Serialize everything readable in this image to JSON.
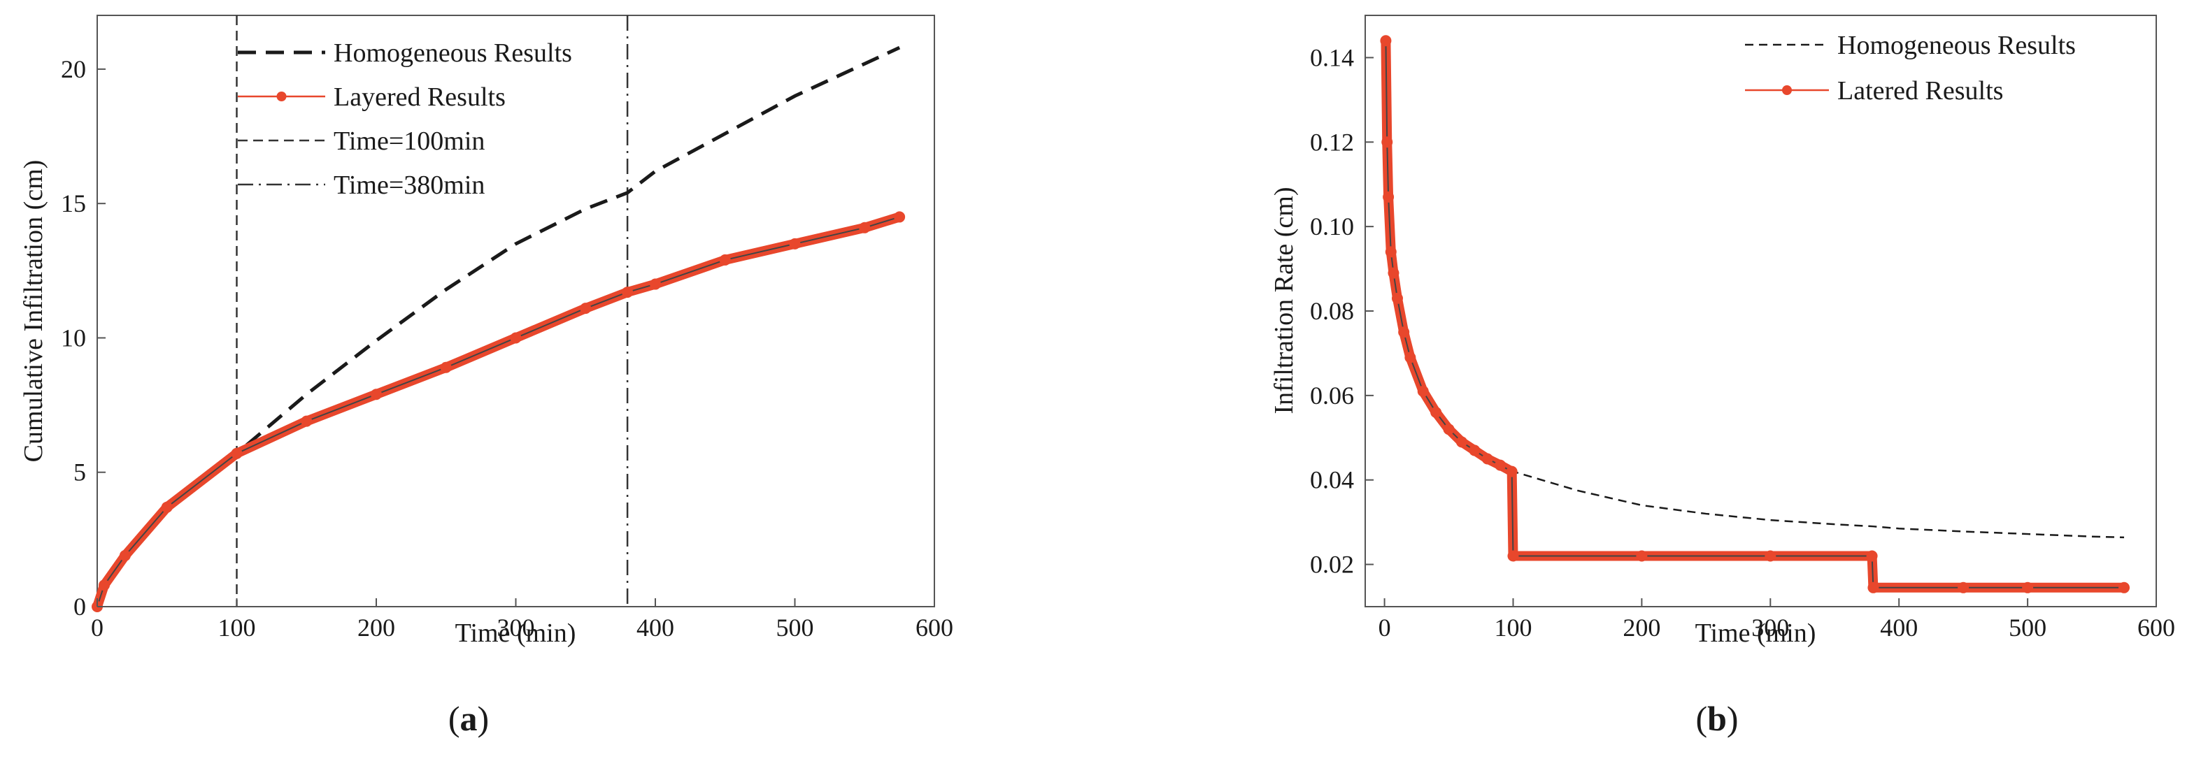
{
  "colors": {
    "homogeneous": "#1a1a1a",
    "layered": "#e8472c",
    "axis": "#555555"
  },
  "chart_data": [
    {
      "id": "a",
      "type": "line",
      "caption": "(a)",
      "caption_letter": "a",
      "xlabel": "Time (min)",
      "ylabel": "Cumulative Infiltration (cm)",
      "xlim": [
        0,
        600
      ],
      "ylim": [
        0,
        22
      ],
      "xticks": [
        0,
        100,
        200,
        300,
        400,
        500,
        600
      ],
      "yticks": [
        0,
        5,
        10,
        15,
        20
      ],
      "grid": false,
      "legend_position": "top-center",
      "series": [
        {
          "name": "Homogeneous Results",
          "style": "dashed",
          "x": [
            0,
            5,
            20,
            50,
            100,
            150,
            200,
            250,
            300,
            350,
            380,
            400,
            450,
            500,
            550,
            575
          ],
          "y": [
            0,
            0.8,
            1.9,
            3.7,
            5.7,
            7.9,
            9.9,
            11.8,
            13.5,
            14.8,
            15.4,
            16.2,
            17.6,
            19.0,
            20.2,
            20.8
          ]
        },
        {
          "name": "Layered Results",
          "style": "solid-markers",
          "x": [
            0,
            5,
            20,
            50,
            100,
            150,
            200,
            250,
            300,
            350,
            380,
            400,
            450,
            500,
            550,
            575
          ],
          "y": [
            0,
            0.8,
            1.9,
            3.7,
            5.7,
            6.9,
            7.9,
            8.9,
            10.0,
            11.1,
            11.7,
            12.0,
            12.9,
            13.5,
            14.1,
            14.5
          ]
        }
      ],
      "reference_lines": [
        {
          "name": "Time=100min",
          "x": 100,
          "style": "dashed"
        },
        {
          "name": "Time=380min",
          "x": 380,
          "style": "dash-dot"
        }
      ]
    },
    {
      "id": "b",
      "type": "line",
      "caption": "(b)",
      "caption_letter": "b",
      "xlabel": "Time (min)",
      "ylabel": "Infiltration Rate (cm)",
      "xlim": [
        -15,
        600
      ],
      "ylim": [
        0.01,
        0.15
      ],
      "xticks": [
        0,
        100,
        200,
        300,
        400,
        500,
        600
      ],
      "yticks": [
        0.02,
        0.04,
        0.06,
        0.08,
        0.1,
        0.12,
        0.14
      ],
      "ytick_labels": [
        "0.02",
        "0.04",
        "0.06",
        "0.08",
        "0.10",
        "0.12",
        "0.14"
      ],
      "grid": false,
      "legend_position": "top-right",
      "series": [
        {
          "name": "Homogeneous Results",
          "style": "dashed",
          "x": [
            1,
            2,
            3,
            5,
            7,
            10,
            15,
            20,
            30,
            40,
            50,
            60,
            70,
            80,
            90,
            100,
            150,
            200,
            250,
            300,
            350,
            380,
            400,
            450,
            500,
            550,
            575
          ],
          "y": [
            0.144,
            0.12,
            0.107,
            0.094,
            0.089,
            0.083,
            0.075,
            0.069,
            0.061,
            0.056,
            0.052,
            0.049,
            0.047,
            0.045,
            0.0435,
            0.042,
            0.0375,
            0.034,
            0.032,
            0.0305,
            0.0295,
            0.029,
            0.0285,
            0.0278,
            0.0272,
            0.0266,
            0.0264
          ]
        },
        {
          "name": "Latered Results",
          "style": "solid-markers",
          "x": [
            1,
            2,
            3,
            5,
            7,
            10,
            15,
            20,
            30,
            40,
            50,
            60,
            70,
            80,
            90,
            99,
            100,
            200,
            300,
            379,
            380,
            450,
            500,
            575
          ],
          "y": [
            0.144,
            0.12,
            0.107,
            0.094,
            0.089,
            0.083,
            0.075,
            0.069,
            0.061,
            0.056,
            0.052,
            0.049,
            0.047,
            0.045,
            0.0435,
            0.042,
            0.022,
            0.022,
            0.022,
            0.022,
            0.0145,
            0.0145,
            0.0145,
            0.0145
          ]
        }
      ]
    }
  ]
}
